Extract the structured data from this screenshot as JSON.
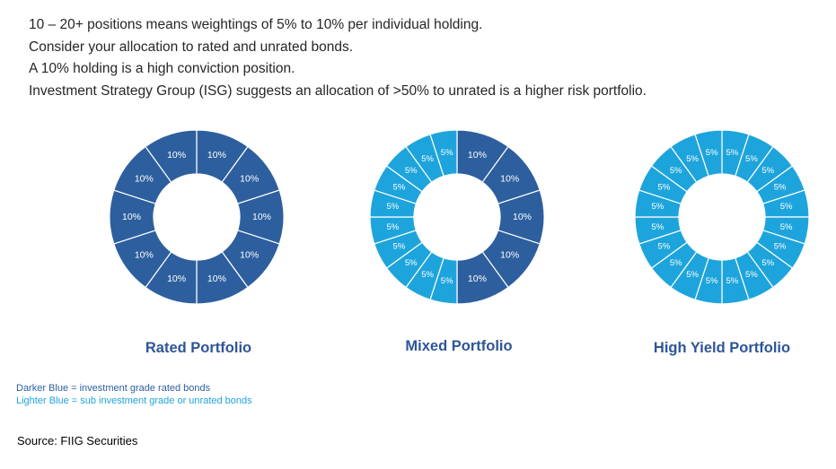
{
  "intro_lines": [
    "10 – 20+ positions means weightings of 5% to 10% per individual holding.",
    "Consider your allocation to rated and unrated bonds.",
    "A 10% holding is a high conviction position.",
    "Investment Strategy Group (ISG) suggests an allocation of >50% to unrated is a higher risk portfolio."
  ],
  "colors": {
    "dark_blue": "#2d5f9e",
    "light_blue": "#1ea4dc",
    "title_blue": "#2e5597"
  },
  "chart_data": [
    {
      "type": "pie",
      "title": "Rated Portfolio",
      "labels": [
        "10%",
        "10%",
        "10%",
        "10%",
        "10%",
        "10%",
        "10%",
        "10%",
        "10%",
        "10%"
      ],
      "values": [
        10,
        10,
        10,
        10,
        10,
        10,
        10,
        10,
        10,
        10
      ],
      "series_type": [
        "dark",
        "dark",
        "dark",
        "dark",
        "dark",
        "dark",
        "dark",
        "dark",
        "dark",
        "dark"
      ]
    },
    {
      "type": "pie",
      "title": "Mixed Portfolio",
      "labels": [
        "10%",
        "10%",
        "10%",
        "10%",
        "10%",
        "5%",
        "5%",
        "5%",
        "5%",
        "5%",
        "5%",
        "5%",
        "5%",
        "5%",
        "5%"
      ],
      "values": [
        10,
        10,
        10,
        10,
        10,
        5,
        5,
        5,
        5,
        5,
        5,
        5,
        5,
        5,
        5
      ],
      "series_type": [
        "dark",
        "dark",
        "dark",
        "dark",
        "dark",
        "light",
        "light",
        "light",
        "light",
        "light",
        "light",
        "light",
        "light",
        "light",
        "light"
      ]
    },
    {
      "type": "pie",
      "title": "High Yield Portfolio",
      "labels": [
        "5%",
        "5%",
        "5%",
        "5%",
        "5%",
        "5%",
        "5%",
        "5%",
        "5%",
        "5%",
        "5%",
        "5%",
        "5%",
        "5%",
        "5%",
        "5%",
        "5%",
        "5%",
        "5%",
        "5%"
      ],
      "values": [
        5,
        5,
        5,
        5,
        5,
        5,
        5,
        5,
        5,
        5,
        5,
        5,
        5,
        5,
        5,
        5,
        5,
        5,
        5,
        5
      ],
      "series_type": [
        "light",
        "light",
        "light",
        "light",
        "light",
        "light",
        "light",
        "light",
        "light",
        "light",
        "light",
        "light",
        "light",
        "light",
        "light",
        "light",
        "light",
        "light",
        "light",
        "light"
      ]
    }
  ],
  "legend": {
    "dark_text": "Darker Blue = investment grade rated bonds",
    "light_text": "Lighter Blue = sub investment grade or unrated bonds"
  },
  "source": "Source: FIIG Securities"
}
